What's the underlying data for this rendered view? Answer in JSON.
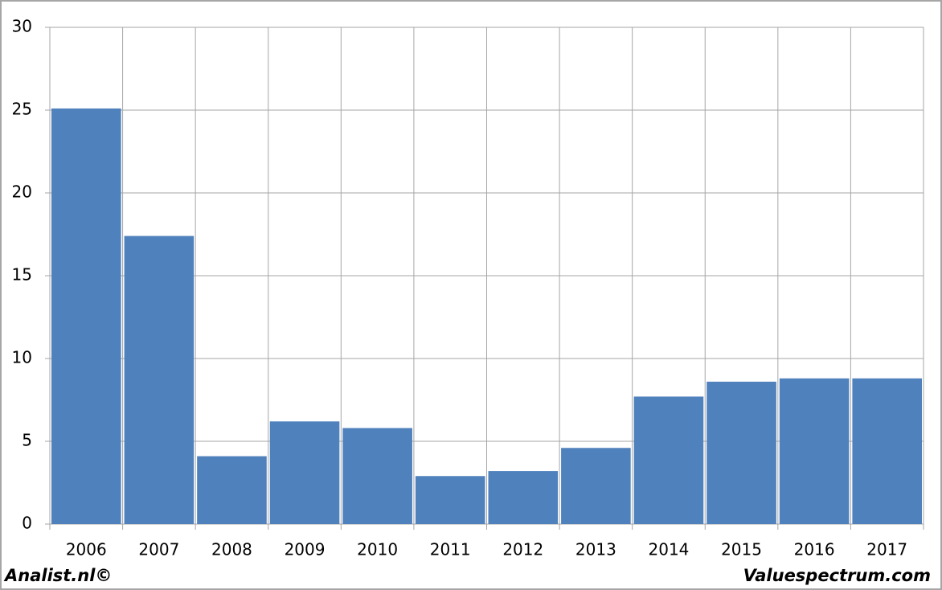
{
  "chart_data": {
    "type": "bar",
    "categories": [
      "2006",
      "2007",
      "2008",
      "2009",
      "2010",
      "2011",
      "2012",
      "2013",
      "2014",
      "2015",
      "2016",
      "2017"
    ],
    "values": [
      25.1,
      17.4,
      4.1,
      6.2,
      5.8,
      2.9,
      3.2,
      4.6,
      7.7,
      8.6,
      8.8,
      8.8
    ],
    "color": "#4f81bd",
    "ylim": [
      0,
      30
    ],
    "yticks": [
      0,
      5,
      10,
      15,
      20,
      25,
      30
    ],
    "grid": true,
    "annotations": [
      "Analist.nl©",
      "Valuespectrum.com"
    ]
  }
}
